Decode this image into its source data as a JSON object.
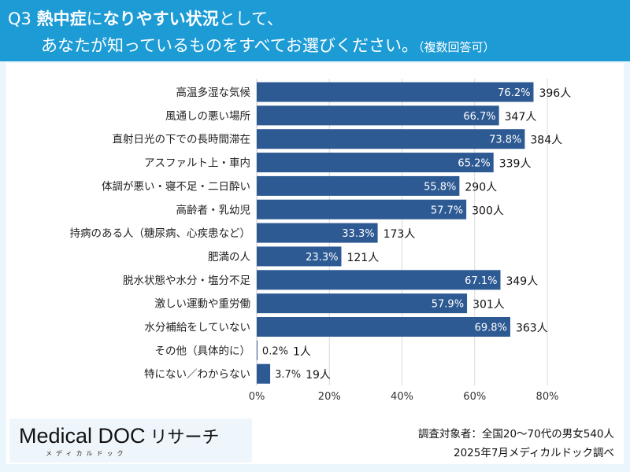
{
  "header": {
    "q_number": "Q3",
    "title_bold_1": "熱中症",
    "title_normal_1": "に",
    "title_bold_2": "なりやすい状況",
    "title_normal_2": "として、",
    "title_line2": "あなたが知っているものをすべてお選びください。",
    "note": "（複数回答可）"
  },
  "colors": {
    "header": "#1d9bd5",
    "bar": "#2e5a93",
    "grid": "#d9d9d9"
  },
  "chart_data": {
    "type": "bar",
    "orientation": "horizontal",
    "categories": [
      "高温多湿な気候",
      "風通しの悪い場所",
      "直射日光の下での長時間滞在",
      "アスファルト上・車内",
      "体調が悪い・寝不足・二日酔い",
      "高齢者・乳幼児",
      "持病のある人（糖尿病、心疾患など）",
      "肥満の人",
      "脱水状態や水分・塩分不足",
      "激しい運動や重労働",
      "水分補給をしていない",
      "その他（具体的に）",
      "特にない／わからない"
    ],
    "values": [
      76.2,
      66.7,
      73.8,
      65.2,
      55.8,
      57.7,
      33.3,
      23.3,
      67.1,
      57.9,
      69.8,
      0.2,
      3.7
    ],
    "value_labels": [
      "76.2%",
      "66.7%",
      "73.8%",
      "65.2%",
      "55.8%",
      "57.7%",
      "33.3%",
      "23.3%",
      "67.1%",
      "57.9%",
      "69.8%",
      "0.2%",
      "3.7%"
    ],
    "counts": [
      "396人",
      "347人",
      "384人",
      "339人",
      "290人",
      "300人",
      "173人",
      "121人",
      "349人",
      "301人",
      "363人",
      "1人",
      "19人"
    ],
    "xlim": [
      0,
      80
    ],
    "xticks": [
      "0%",
      "20%",
      "40%",
      "60%",
      "80%"
    ],
    "grid": true
  },
  "footer": {
    "logo_text": "Medical DOC",
    "logo_suffix": "リサーチ",
    "logo_kana": "メディカルドック",
    "survey_subject": "調査対象者：全国20〜70代の男女540人",
    "survey_date": "2025年7月メディカルドック調べ"
  }
}
